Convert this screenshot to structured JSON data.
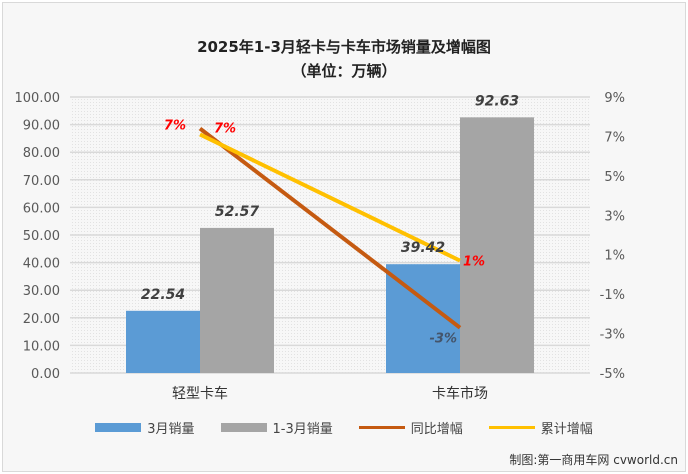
{
  "chart_data": {
    "type": "bar+line",
    "title": "2025年1-3月轻卡与卡车市场销量及增幅图",
    "subtitle": "（单位：万辆）",
    "categories": [
      "轻型卡车",
      "卡车市场"
    ],
    "y_left": {
      "range": [
        0,
        100
      ],
      "ticks": [
        "0.00",
        "10.00",
        "20.00",
        "30.00",
        "40.00",
        "50.00",
        "60.00",
        "70.00",
        "80.00",
        "90.00",
        "100.00"
      ]
    },
    "y_right": {
      "range": [
        -5,
        9
      ],
      "ticks": [
        "-5%",
        "-3%",
        "-1%",
        "1%",
        "3%",
        "5%",
        "7%",
        "9%"
      ]
    },
    "grid": true,
    "legend_position": "bottom",
    "bar_series": [
      {
        "name": "3月销量",
        "values": [
          22.54,
          39.42
        ],
        "labels": [
          "22.54",
          "39.42"
        ],
        "color": "#5b9bd5"
      },
      {
        "name": "1-3月销量",
        "values": [
          52.57,
          92.63
        ],
        "labels": [
          "52.57",
          "92.63"
        ],
        "color": "#a5a5a5"
      }
    ],
    "line_series": [
      {
        "name": "同比增幅",
        "values": [
          7.4,
          -2.7
        ],
        "labels": [
          "7%",
          "-3%"
        ],
        "color": "#c55a11"
      },
      {
        "name": "累计增幅",
        "values": [
          7.1,
          0.7
        ],
        "labels": [
          "7%",
          "1%"
        ],
        "color": "#ffc000"
      }
    ]
  },
  "credit": "制图:第一商用车网 cvworld.cn"
}
